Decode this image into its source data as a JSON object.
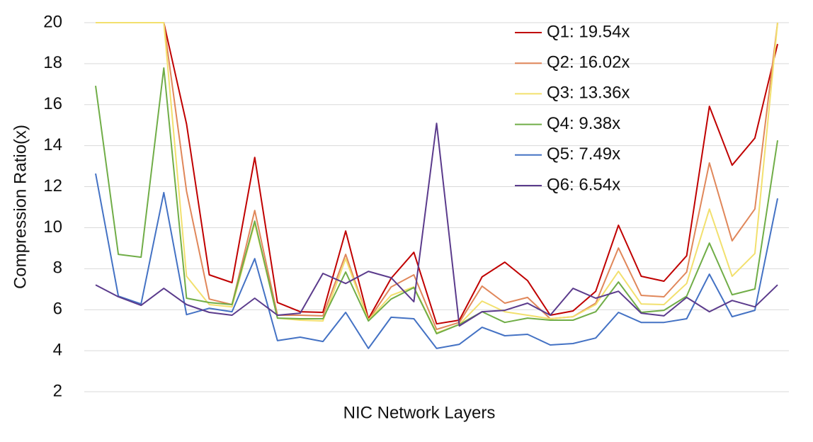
{
  "chart_data": {
    "type": "line",
    "x_label": "NIC Network Layers",
    "y_label": "Compression Ratio(x)",
    "categories": [
      null,
      null,
      null,
      null,
      null,
      null,
      null,
      null,
      null,
      null,
      null,
      null,
      null,
      null,
      null,
      null,
      null,
      null,
      null,
      null,
      null,
      null,
      null,
      null,
      null,
      null,
      null,
      null,
      null,
      null,
      null
    ],
    "ylim": [
      2,
      20
    ],
    "yticks": [
      2,
      4,
      6,
      8,
      10,
      12,
      14,
      16,
      18,
      20
    ],
    "grid": true,
    "legend": "top-right",
    "series": [
      {
        "name": "Q1: 19.54x",
        "color": "#c00000",
        "values": [
          20,
          20,
          20,
          20,
          15.06,
          7.7,
          7.32,
          13.43,
          6.35,
          5.9,
          5.87,
          9.84,
          5.56,
          7.53,
          8.8,
          5.31,
          5.49,
          7.6,
          8.32,
          7.42,
          5.73,
          5.94,
          6.9,
          10.12,
          7.63,
          7.39,
          8.63,
          15.92,
          13.05,
          14.37,
          18.96
        ]
      },
      {
        "name": "Q2: 16.02x",
        "color": "#e0875a",
        "values": [
          20,
          20,
          20,
          20,
          11.78,
          6.52,
          6.25,
          10.84,
          5.73,
          5.73,
          5.7,
          8.7,
          5.49,
          7.11,
          7.7,
          5.04,
          5.38,
          7.15,
          6.32,
          6.6,
          5.56,
          5.66,
          6.32,
          9.01,
          6.7,
          6.63,
          7.84,
          13.16,
          9.36,
          10.91,
          20
        ]
      },
      {
        "name": "Q3: 13.36x",
        "color": "#f2e06e",
        "values": [
          20,
          20,
          20,
          20,
          7.63,
          6.25,
          6.14,
          10.22,
          5.59,
          5.49,
          5.45,
          8.49,
          5.49,
          6.7,
          7.11,
          4.87,
          5.28,
          6.42,
          5.9,
          5.73,
          5.56,
          5.66,
          6.25,
          7.87,
          6.28,
          6.25,
          7.28,
          10.91,
          7.63,
          8.74,
          20
        ]
      },
      {
        "name": "Q4: 9.38x",
        "color": "#70ad47",
        "values": [
          16.92,
          8.7,
          8.56,
          17.79,
          6.56,
          6.35,
          6.25,
          10.32,
          5.59,
          5.56,
          5.56,
          7.84,
          5.45,
          6.52,
          7.08,
          4.83,
          5.28,
          5.9,
          5.38,
          5.59,
          5.49,
          5.49,
          5.9,
          7.35,
          5.87,
          5.97,
          6.66,
          9.25,
          6.73,
          7.01,
          14.26
        ]
      },
      {
        "name": "Q5: 7.49x",
        "color": "#4472c4",
        "values": [
          12.64,
          6.66,
          6.28,
          11.71,
          5.76,
          6.07,
          5.9,
          8.49,
          4.49,
          4.66,
          4.45,
          5.87,
          4.11,
          5.63,
          5.56,
          4.11,
          4.31,
          5.14,
          4.73,
          4.8,
          4.28,
          4.35,
          4.62,
          5.87,
          5.38,
          5.38,
          5.56,
          7.73,
          5.66,
          5.97,
          11.43
        ]
      },
      {
        "name": "Q6: 6.54x",
        "color": "#5b3b8c",
        "values": [
          7.21,
          6.63,
          6.21,
          7.04,
          6.25,
          5.87,
          5.73,
          6.56,
          5.73,
          5.83,
          7.77,
          7.28,
          7.87,
          7.56,
          6.39,
          15.09,
          5.21,
          5.9,
          5.97,
          6.32,
          5.73,
          7.04,
          6.56,
          6.9,
          5.83,
          5.7,
          6.6,
          5.9,
          6.45,
          6.14,
          7.21
        ]
      }
    ]
  }
}
